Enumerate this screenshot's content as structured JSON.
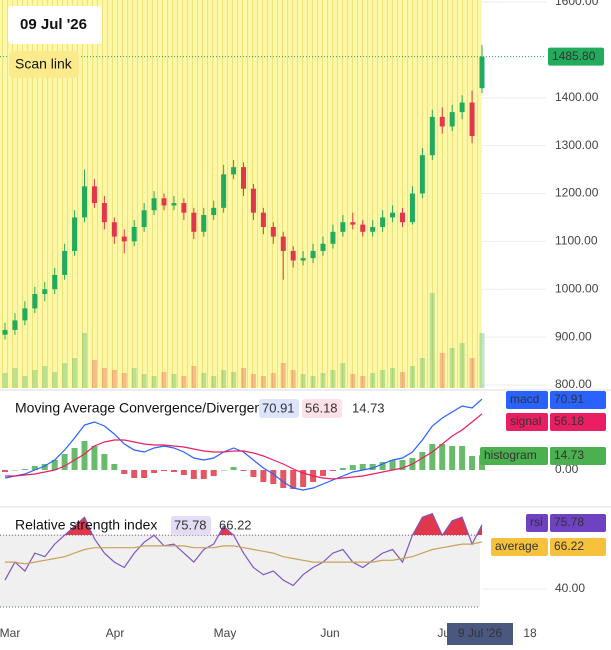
{
  "chart_data": [
    {
      "type": "candlestick",
      "date_label": "09 Jul '26",
      "scan_link": "Scan link",
      "crosshair_label": "9 Jul '26",
      "up_color": "#22ab5c",
      "down_color": "#e0384a",
      "open": [
        905,
        915,
        935,
        960,
        990,
        1000,
        1030,
        1080,
        1150,
        1215,
        1180,
        1140,
        1110,
        1100,
        1130,
        1165,
        1190,
        1175,
        1180,
        1160,
        1120,
        1155,
        1170,
        1240,
        1255,
        1210,
        1160,
        1130,
        1110,
        1080,
        1060,
        1065,
        1080,
        1095,
        1120,
        1140,
        1135,
        1120,
        1130,
        1150,
        1160,
        1140,
        1200,
        1280,
        1360,
        1340,
        1370,
        1390,
        1420
      ],
      "high": [
        930,
        950,
        975,
        1005,
        1015,
        1045,
        1095,
        1165,
        1250,
        1230,
        1195,
        1150,
        1125,
        1145,
        1180,
        1205,
        1200,
        1195,
        1190,
        1170,
        1170,
        1185,
        1260,
        1270,
        1265,
        1220,
        1170,
        1140,
        1120,
        1090,
        1080,
        1095,
        1110,
        1135,
        1155,
        1160,
        1145,
        1145,
        1165,
        1175,
        1170,
        1215,
        1295,
        1375,
        1380,
        1385,
        1405,
        1415,
        1510
      ],
      "low": [
        895,
        905,
        925,
        950,
        975,
        990,
        1020,
        1070,
        1140,
        1170,
        1125,
        1095,
        1075,
        1090,
        1120,
        1155,
        1165,
        1165,
        1145,
        1105,
        1110,
        1145,
        1160,
        1230,
        1195,
        1145,
        1115,
        1095,
        1020,
        1045,
        1050,
        1055,
        1070,
        1085,
        1110,
        1125,
        1110,
        1110,
        1120,
        1140,
        1130,
        1135,
        1190,
        1270,
        1325,
        1330,
        1355,
        1305,
        1410
      ],
      "close": [
        915,
        935,
        960,
        990,
        1000,
        1030,
        1080,
        1150,
        1215,
        1180,
        1140,
        1110,
        1100,
        1130,
        1165,
        1190,
        1175,
        1180,
        1160,
        1120,
        1155,
        1170,
        1240,
        1255,
        1210,
        1160,
        1130,
        1110,
        1080,
        1060,
        1065,
        1080,
        1095,
        1120,
        1140,
        1135,
        1120,
        1130,
        1150,
        1160,
        1140,
        1200,
        1280,
        1360,
        1340,
        1370,
        1390,
        1320,
        1485.8
      ],
      "volume": [
        15,
        20,
        12,
        18,
        22,
        16,
        25,
        30,
        55,
        28,
        20,
        18,
        15,
        20,
        14,
        12,
        16,
        14,
        12,
        22,
        15,
        12,
        18,
        16,
        20,
        14,
        12,
        15,
        25,
        18,
        14,
        12,
        15,
        18,
        25,
        14,
        12,
        15,
        18,
        20,
        16,
        22,
        30,
        95,
        35,
        40,
        45,
        30,
        55
      ],
      "last_price": {
        "value": 1485.8,
        "label": "1485.80"
      },
      "ylim": [
        800,
        1600
      ],
      "yticks": [
        {
          "value": 800,
          "label": "800.00"
        },
        {
          "value": 900,
          "label": "900.00"
        },
        {
          "value": 1000,
          "label": "1000.00"
        },
        {
          "value": 1100,
          "label": "1100.00"
        },
        {
          "value": 1200,
          "label": "1200.00"
        },
        {
          "value": 1300,
          "label": "1300.00"
        },
        {
          "value": 1400,
          "label": "1400.00"
        },
        {
          "value": 1600,
          "label": "1600.00"
        }
      ],
      "x_labels": [
        "Mar",
        "Apr",
        "May",
        "Jun",
        "Jul",
        "18"
      ]
    },
    {
      "type": "macd",
      "title": "Moving Average Convergence/Divergence",
      "series": [
        {
          "name": "macd",
          "color": "#2962ff",
          "values": [
            -8,
            -6,
            -4,
            0,
            4,
            10,
            20,
            32,
            45,
            48,
            44,
            36,
            26,
            20,
            18,
            22,
            24,
            22,
            18,
            12,
            10,
            12,
            18,
            22,
            18,
            10,
            2,
            -4,
            -12,
            -18,
            -20,
            -18,
            -14,
            -10,
            -6,
            -2,
            0,
            2,
            6,
            10,
            12,
            18,
            30,
            44,
            52,
            58,
            64,
            62,
            70.91
          ]
        },
        {
          "name": "signal",
          "color": "#e91e63",
          "values": [
            -6,
            -6,
            -5,
            -4,
            -2,
            0,
            4,
            10,
            16,
            24,
            28,
            30,
            30,
            28,
            26,
            25,
            25,
            24,
            23,
            21,
            19,
            18,
            18,
            19,
            19,
            17,
            14,
            10,
            6,
            1,
            -3,
            -6,
            -8,
            -9,
            -8,
            -7,
            -6,
            -4,
            -2,
            0,
            2,
            6,
            12,
            18,
            26,
            34,
            40,
            48,
            56.18
          ]
        },
        {
          "name": "histogram",
          "color": "#4caf50",
          "negative_color": "#e0384a",
          "values": [
            -2,
            0,
            1,
            4,
            6,
            10,
            16,
            22,
            29,
            24,
            16,
            6,
            -4,
            -8,
            -8,
            -3,
            -1,
            -2,
            -5,
            -9,
            -9,
            -6,
            0,
            3,
            -1,
            -7,
            -12,
            -14,
            -18,
            -19,
            -17,
            -12,
            -6,
            -1,
            2,
            5,
            6,
            6,
            8,
            10,
            10,
            12,
            18,
            26,
            26,
            24,
            24,
            14,
            14.73
          ]
        }
      ],
      "ylim": [
        -35,
        78
      ],
      "yticks": [
        {
          "value": 0,
          "label": "0.00"
        }
      ]
    },
    {
      "type": "rsi",
      "title": "Relative strength index",
      "series": [
        {
          "name": "rsi",
          "color": "#7e57c2",
          "values": [
            45,
            55,
            50,
            60,
            58,
            65,
            70,
            75,
            80,
            68,
            60,
            55,
            52,
            60,
            66,
            70,
            64,
            65,
            60,
            55,
            62,
            65,
            75,
            70,
            60,
            52,
            48,
            50,
            45,
            42,
            48,
            52,
            55,
            60,
            62,
            55,
            52,
            56,
            60,
            62,
            55,
            70,
            80,
            82,
            70,
            78,
            80,
            65,
            75.78
          ]
        },
        {
          "name": "average",
          "color": "#c8a25a",
          "values": [
            55,
            55,
            54,
            55,
            56,
            57,
            58,
            60,
            62,
            63,
            63,
            63,
            63,
            63,
            64,
            64,
            64,
            64,
            64,
            63,
            63,
            63,
            64,
            64,
            63,
            62,
            61,
            60,
            58,
            57,
            56,
            55,
            55,
            55,
            55,
            55,
            55,
            55,
            56,
            56,
            57,
            58,
            60,
            62,
            63,
            64,
            65,
            65,
            66.22
          ]
        }
      ],
      "bands": [
        70,
        30
      ],
      "band_color": "#e0384a",
      "ylim": [
        25,
        84
      ],
      "yticks": [
        {
          "value": 40,
          "label": "40.00"
        }
      ]
    }
  ]
}
